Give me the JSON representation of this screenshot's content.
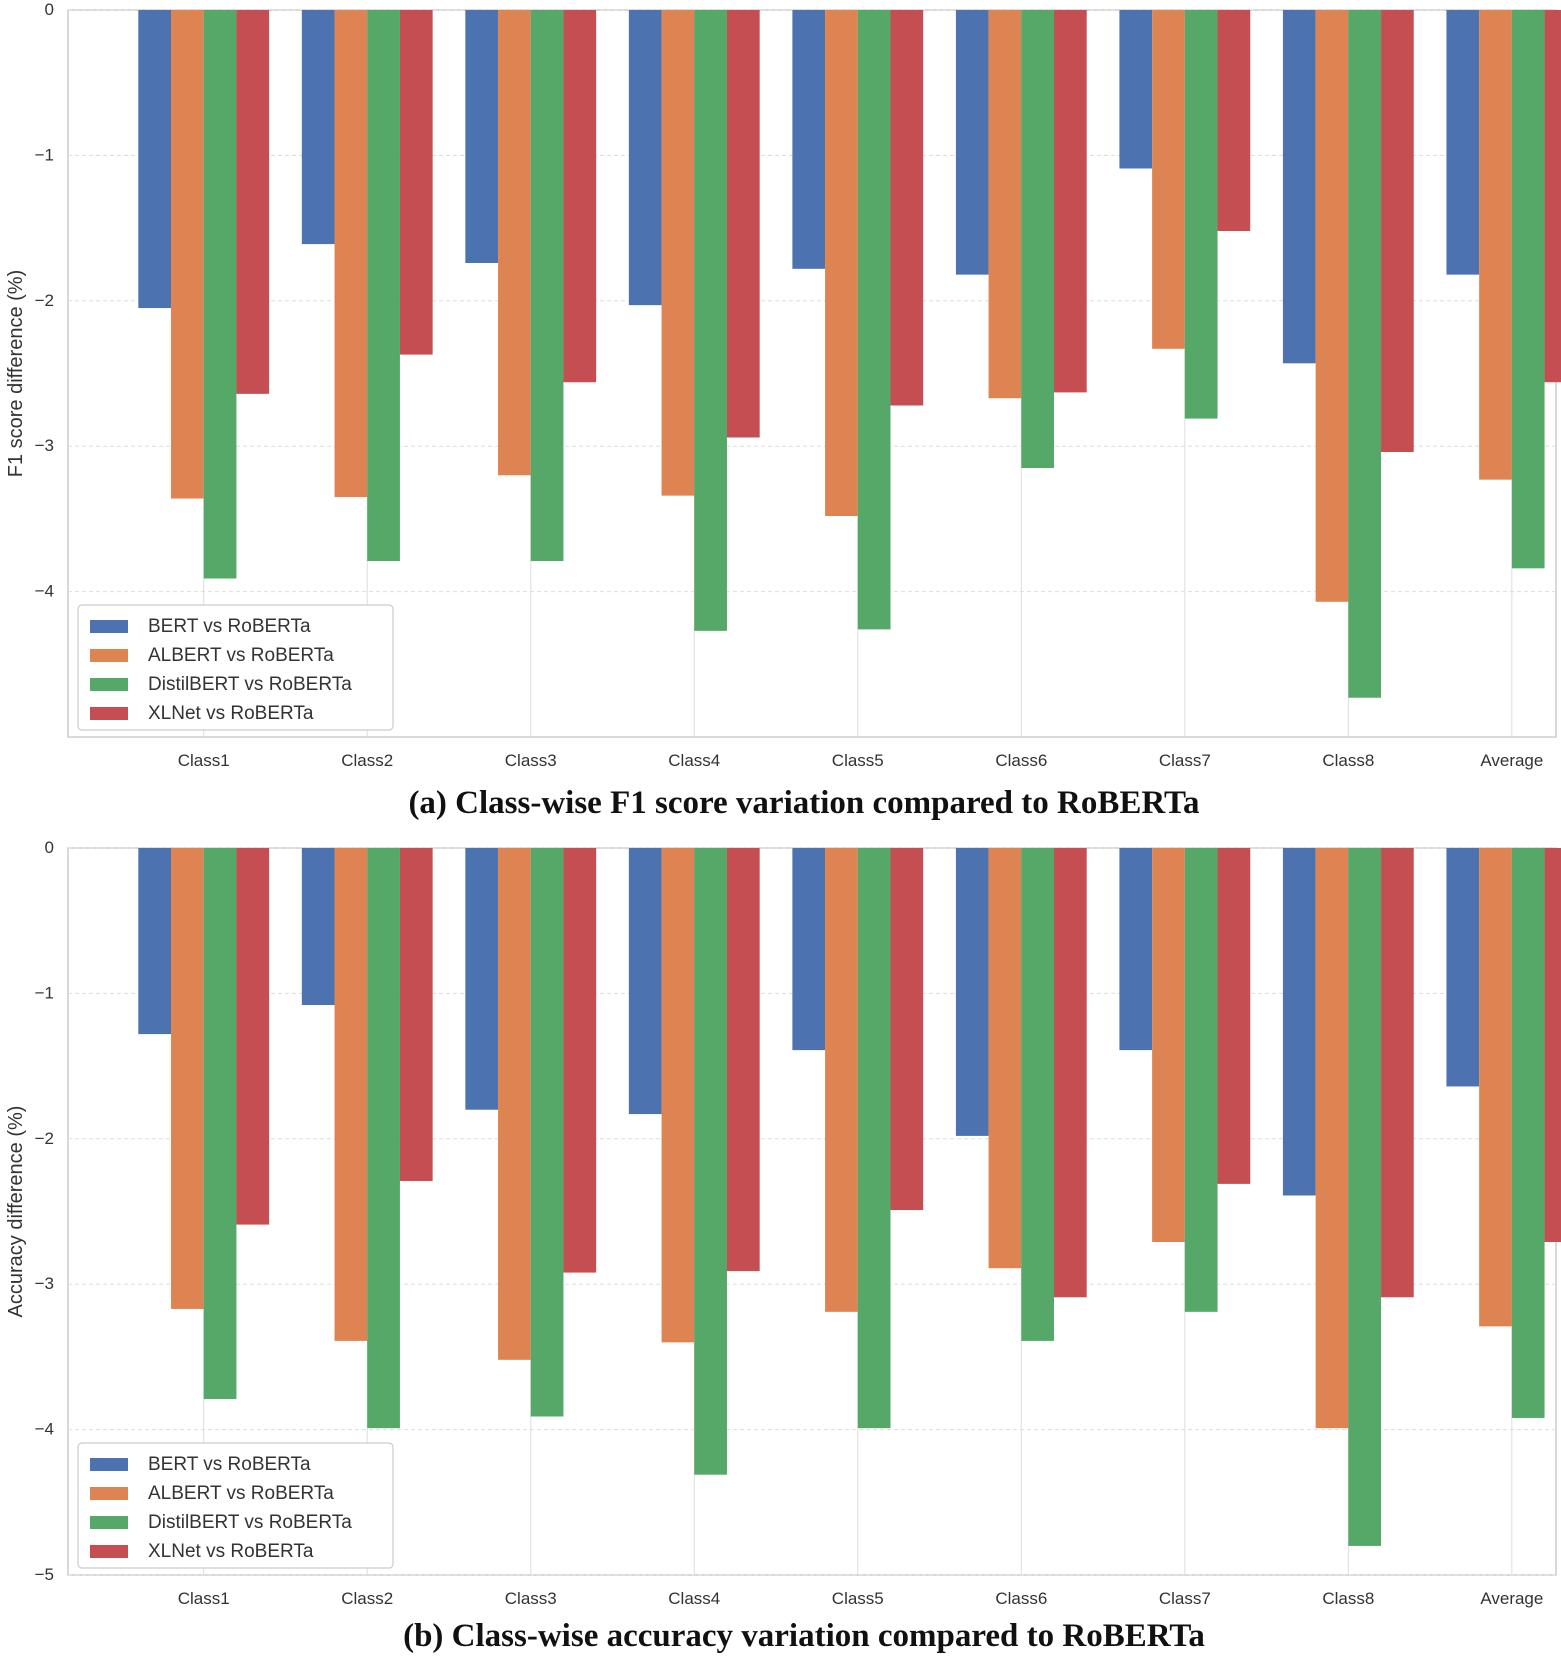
{
  "colors": {
    "BERT": "#4c72b0",
    "ALBERT": "#dd8452",
    "DistilBERT": "#55a868",
    "XLNet": "#c44e52",
    "grid": "#dddddd",
    "frame": "#cccccc"
  },
  "chart_data": [
    {
      "type": "bar",
      "caption": "(a) Class-wise F1 score variation compared to RoBERTa",
      "xlabel": "",
      "ylabel": "F1 score difference (%)",
      "ylim": [
        -5,
        0
      ],
      "yticks": [
        0,
        -1,
        -2,
        -3,
        -4
      ],
      "legend_location": "lower-left",
      "categories": [
        "Class1",
        "Class2",
        "Class3",
        "Class4",
        "Class5",
        "Class6",
        "Class7",
        "Class8",
        "Average"
      ],
      "series": [
        {
          "name": "BERT vs RoBERTa",
          "color_key": "BERT",
          "values": [
            -2.05,
            -1.61,
            -1.74,
            -2.03,
            -1.78,
            -1.82,
            -1.09,
            -2.43,
            -1.82
          ]
        },
        {
          "name": "ALBERT vs RoBERTa",
          "color_key": "ALBERT",
          "values": [
            -3.36,
            -3.35,
            -3.2,
            -3.34,
            -3.48,
            -2.67,
            -2.33,
            -4.07,
            -3.23
          ]
        },
        {
          "name": "DistilBERT vs RoBERTa",
          "color_key": "DistilBERT",
          "values": [
            -3.91,
            -3.79,
            -3.79,
            -4.27,
            -4.26,
            -3.15,
            -2.81,
            -4.73,
            -3.84
          ]
        },
        {
          "name": "XLNet vs RoBERTa",
          "color_key": "XLNet",
          "values": [
            -2.64,
            -2.37,
            -2.56,
            -2.94,
            -2.72,
            -2.63,
            -1.52,
            -3.04,
            -2.56
          ]
        }
      ]
    },
    {
      "type": "bar",
      "caption": "(b) Class-wise accuracy variation compared to RoBERTa",
      "xlabel": "",
      "ylabel": "Accuracy difference (%)",
      "ylim": [
        -5,
        0
      ],
      "yticks": [
        0,
        -1,
        -2,
        -3,
        -4,
        -5
      ],
      "legend_location": "lower-left",
      "categories": [
        "Class1",
        "Class2",
        "Class3",
        "Class4",
        "Class5",
        "Class6",
        "Class7",
        "Class8",
        "Average"
      ],
      "series": [
        {
          "name": "BERT vs RoBERTa",
          "color_key": "BERT",
          "values": [
            -1.28,
            -1.08,
            -1.8,
            -1.83,
            -1.39,
            -1.98,
            -1.39,
            -2.39,
            -1.64
          ]
        },
        {
          "name": "ALBERT vs RoBERTa",
          "color_key": "ALBERT",
          "values": [
            -3.17,
            -3.39,
            -3.52,
            -3.4,
            -3.19,
            -2.89,
            -2.71,
            -3.99,
            -3.29
          ]
        },
        {
          "name": "DistilBERT vs RoBERTa",
          "color_key": "DistilBERT",
          "values": [
            -3.79,
            -3.99,
            -3.91,
            -4.31,
            -3.99,
            -3.39,
            -3.19,
            -4.8,
            -3.92
          ]
        },
        {
          "name": "XLNet vs RoBERTa",
          "color_key": "XLNet",
          "values": [
            -2.59,
            -2.29,
            -2.92,
            -2.91,
            -2.49,
            -3.09,
            -2.31,
            -3.09,
            -2.71
          ]
        }
      ]
    }
  ]
}
